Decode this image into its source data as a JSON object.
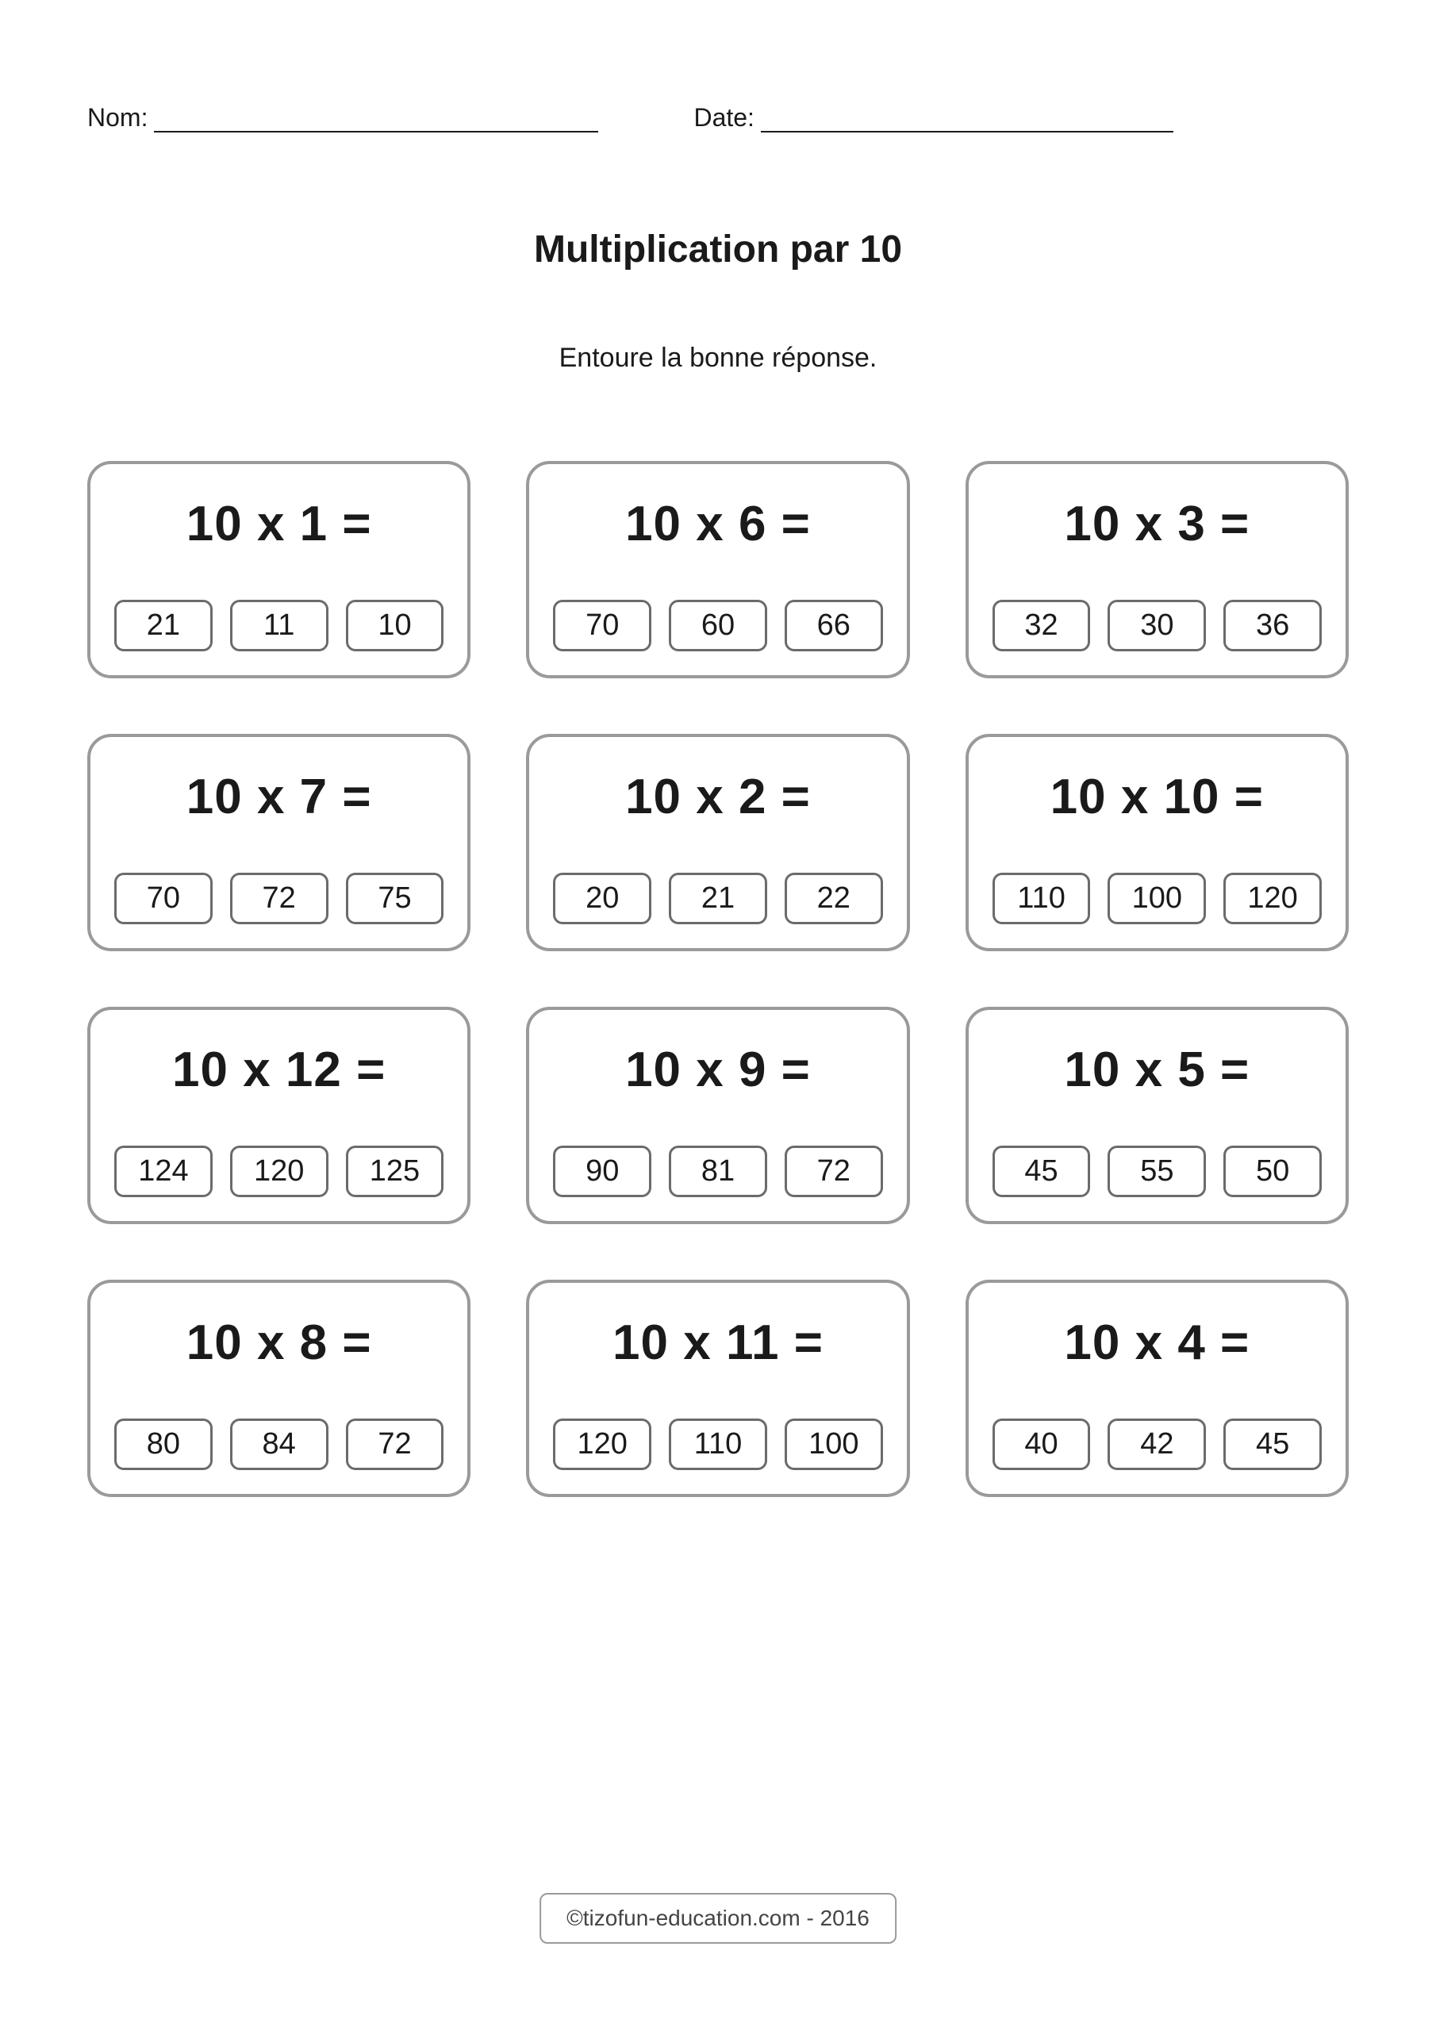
{
  "header": {
    "name_label": "Nom:",
    "date_label": "Date:"
  },
  "title": "Multiplication par 10",
  "instruction": "Entoure la bonne réponse.",
  "problems": [
    {
      "equation": "10 x 1 =",
      "options": [
        "21",
        "11",
        "10"
      ]
    },
    {
      "equation": "10 x 6 =",
      "options": [
        "70",
        "60",
        "66"
      ]
    },
    {
      "equation": "10 x 3 =",
      "options": [
        "32",
        "30",
        "36"
      ]
    },
    {
      "equation": "10 x 7 =",
      "options": [
        "70",
        "72",
        "75"
      ]
    },
    {
      "equation": "10 x 2 =",
      "options": [
        "20",
        "21",
        "22"
      ]
    },
    {
      "equation": "10 x 10 =",
      "options": [
        "110",
        "100",
        "120"
      ]
    },
    {
      "equation": "10 x 12 =",
      "options": [
        "124",
        "120",
        "125"
      ]
    },
    {
      "equation": "10 x 9 =",
      "options": [
        "90",
        "81",
        "72"
      ]
    },
    {
      "equation": "10 x 5 =",
      "options": [
        "45",
        "55",
        "50"
      ]
    },
    {
      "equation": "10 x 8 =",
      "options": [
        "80",
        "84",
        "72"
      ]
    },
    {
      "equation": "10 x 11 =",
      "options": [
        "120",
        "110",
        "100"
      ]
    },
    {
      "equation": "10 x 4 =",
      "options": [
        "40",
        "42",
        "45"
      ]
    }
  ],
  "footer": "©tizofun-education.com - 2016",
  "style": {
    "page_bg": "#ffffff",
    "text_color": "#1a1a1a",
    "card_border_color": "#9a9a9a",
    "card_border_radius": 30,
    "option_border_color": "#6b6b6b",
    "option_border_radius": 12,
    "title_fontsize": 48,
    "instruction_fontsize": 34,
    "equation_fontsize": 62,
    "option_fontsize": 38,
    "label_fontsize": 32,
    "footer_fontsize": 28,
    "grid_columns": 3,
    "grid_rows": 4
  }
}
